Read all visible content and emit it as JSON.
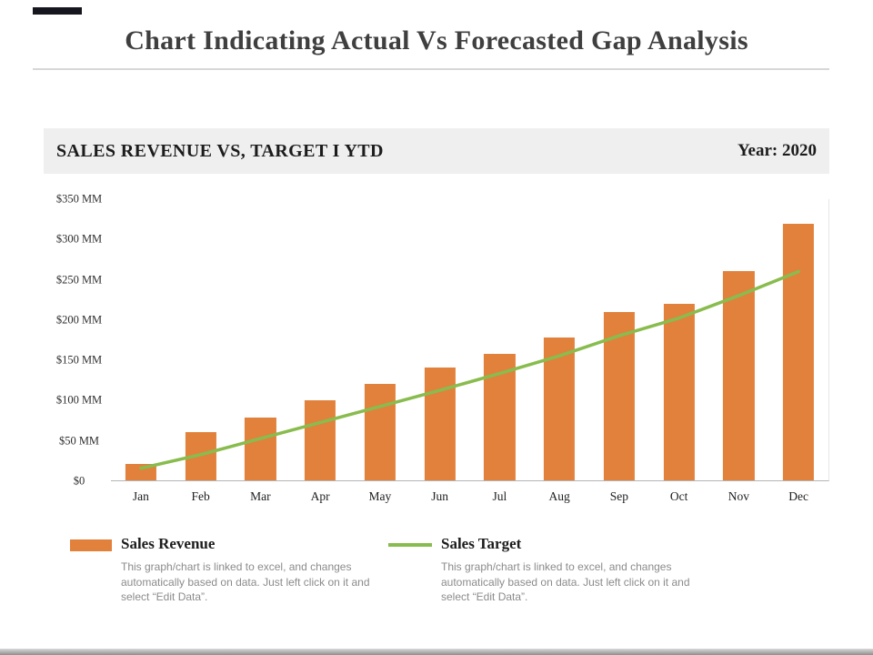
{
  "page": {
    "title": "Chart Indicating Actual Vs Forecasted Gap Analysis"
  },
  "panel": {
    "title": "SALES REVENUE VS, TARGET I YTD",
    "year": "Year: 2020"
  },
  "chart_data": {
    "type": "bar",
    "title": "SALES REVENUE VS, TARGET I YTD",
    "categories": [
      "Jan",
      "Feb",
      "Mar",
      "Apr",
      "May",
      "Jun",
      "Jul",
      "Aug",
      "Sep",
      "Oct",
      "Nov",
      "Dec"
    ],
    "series": [
      {
        "name": "Sales Revenue",
        "type": "bar",
        "color": "#E2813B",
        "values": [
          20,
          60,
          78,
          100,
          120,
          140,
          158,
          178,
          210,
          220,
          260,
          320
        ]
      },
      {
        "name": "Sales Target",
        "type": "line",
        "color": "#89BC4E",
        "values": [
          15,
          32,
          52,
          72,
          92,
          112,
          133,
          155,
          180,
          202,
          230,
          260
        ]
      }
    ],
    "xlabel": "",
    "ylabel": "",
    "ylim": [
      0,
      350
    ],
    "y_tick_values": [
      0,
      50,
      100,
      150,
      200,
      250,
      300,
      350
    ],
    "y_ticks": [
      "$0",
      "$50 MM",
      "$100 MM",
      "$150 MM",
      "$200 MM",
      "$250 MM",
      "$300 MM",
      "$350 MM"
    ],
    "grid": false,
    "legend_position": "bottom"
  },
  "legend": [
    {
      "label": "Sales Revenue",
      "note": "This graph/chart is linked to excel, and changes automatically based on data. Just left click on it and select “Edit Data”."
    },
    {
      "label": "Sales Target",
      "note": "This graph/chart is linked to excel, and changes automatically based on data. Just left click on it and select “Edit Data”."
    }
  ],
  "colors": {
    "bar": "#E2813B",
    "line": "#89BC4E",
    "header_bg": "#EFEFEF",
    "accent_dark": "#16161E"
  }
}
